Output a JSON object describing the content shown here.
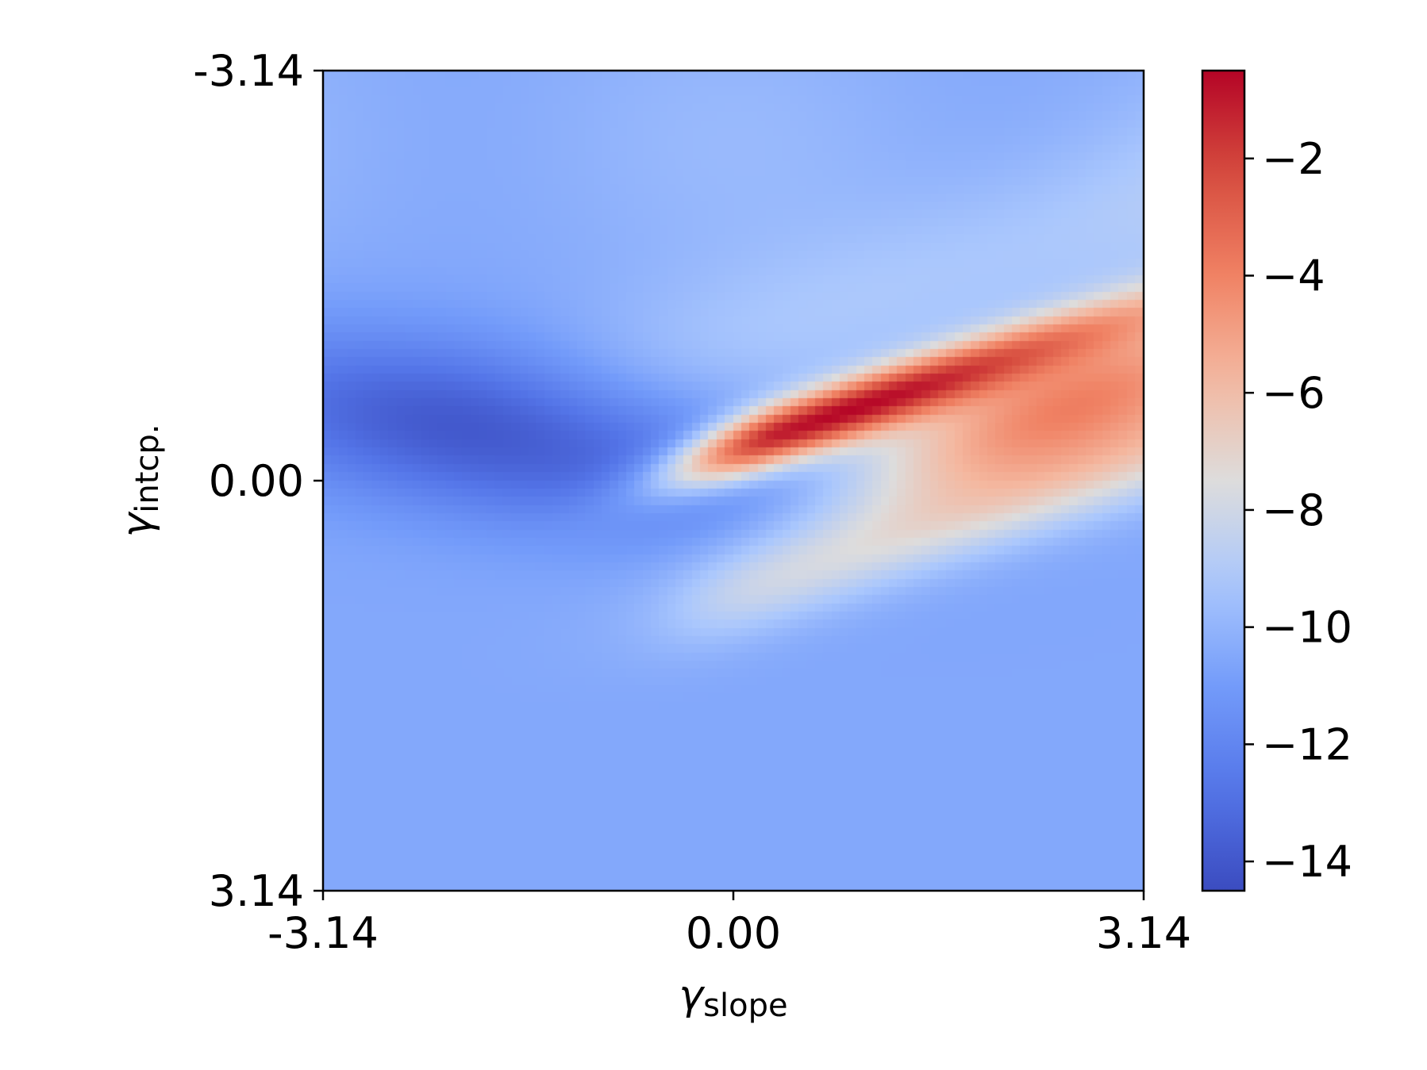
{
  "chart_data": {
    "type": "heatmap",
    "title": "",
    "xlabel": {
      "symbol": "γ",
      "subscript": "slope"
    },
    "ylabel": {
      "symbol": "γ",
      "subscript": "intcp."
    },
    "x_range": [
      -3.14,
      3.14
    ],
    "y_range": [
      -3.14,
      3.14
    ],
    "y_axis_inverted": true,
    "x_ticks": [
      "-3.14",
      "0.00",
      "3.14"
    ],
    "x_tick_values": [
      -3.14,
      0.0,
      3.14
    ],
    "y_ticks": [
      "-3.14",
      "0.00",
      "3.14"
    ],
    "y_tick_values": [
      -3.14,
      0.0,
      3.14
    ],
    "colormap": "coolwarm",
    "colorbar": {
      "range": [
        -14.5,
        -0.5
      ],
      "ticks": [
        "−2",
        "−4",
        "−6",
        "−8",
        "−10",
        "−12",
        "−14"
      ],
      "tick_values": [
        -2,
        -4,
        -6,
        -8,
        -10,
        -12,
        -14
      ],
      "low_color": "#3b4cc0",
      "mid_color": "#dddddd",
      "high_color": "#b40426"
    },
    "grid": false,
    "features": {
      "background_level": -10.5,
      "blue_basin": {
        "center": [
          -1.8,
          -0.35
        ],
        "min_value": -14.3
      },
      "red_ridge": {
        "center": [
          0.35,
          -0.35
        ],
        "max_value": -0.6,
        "direction_slope": -0.33
      },
      "red_shoulder": {
        "center": [
          2.6,
          -0.6
        ],
        "value": -4.5
      }
    }
  }
}
